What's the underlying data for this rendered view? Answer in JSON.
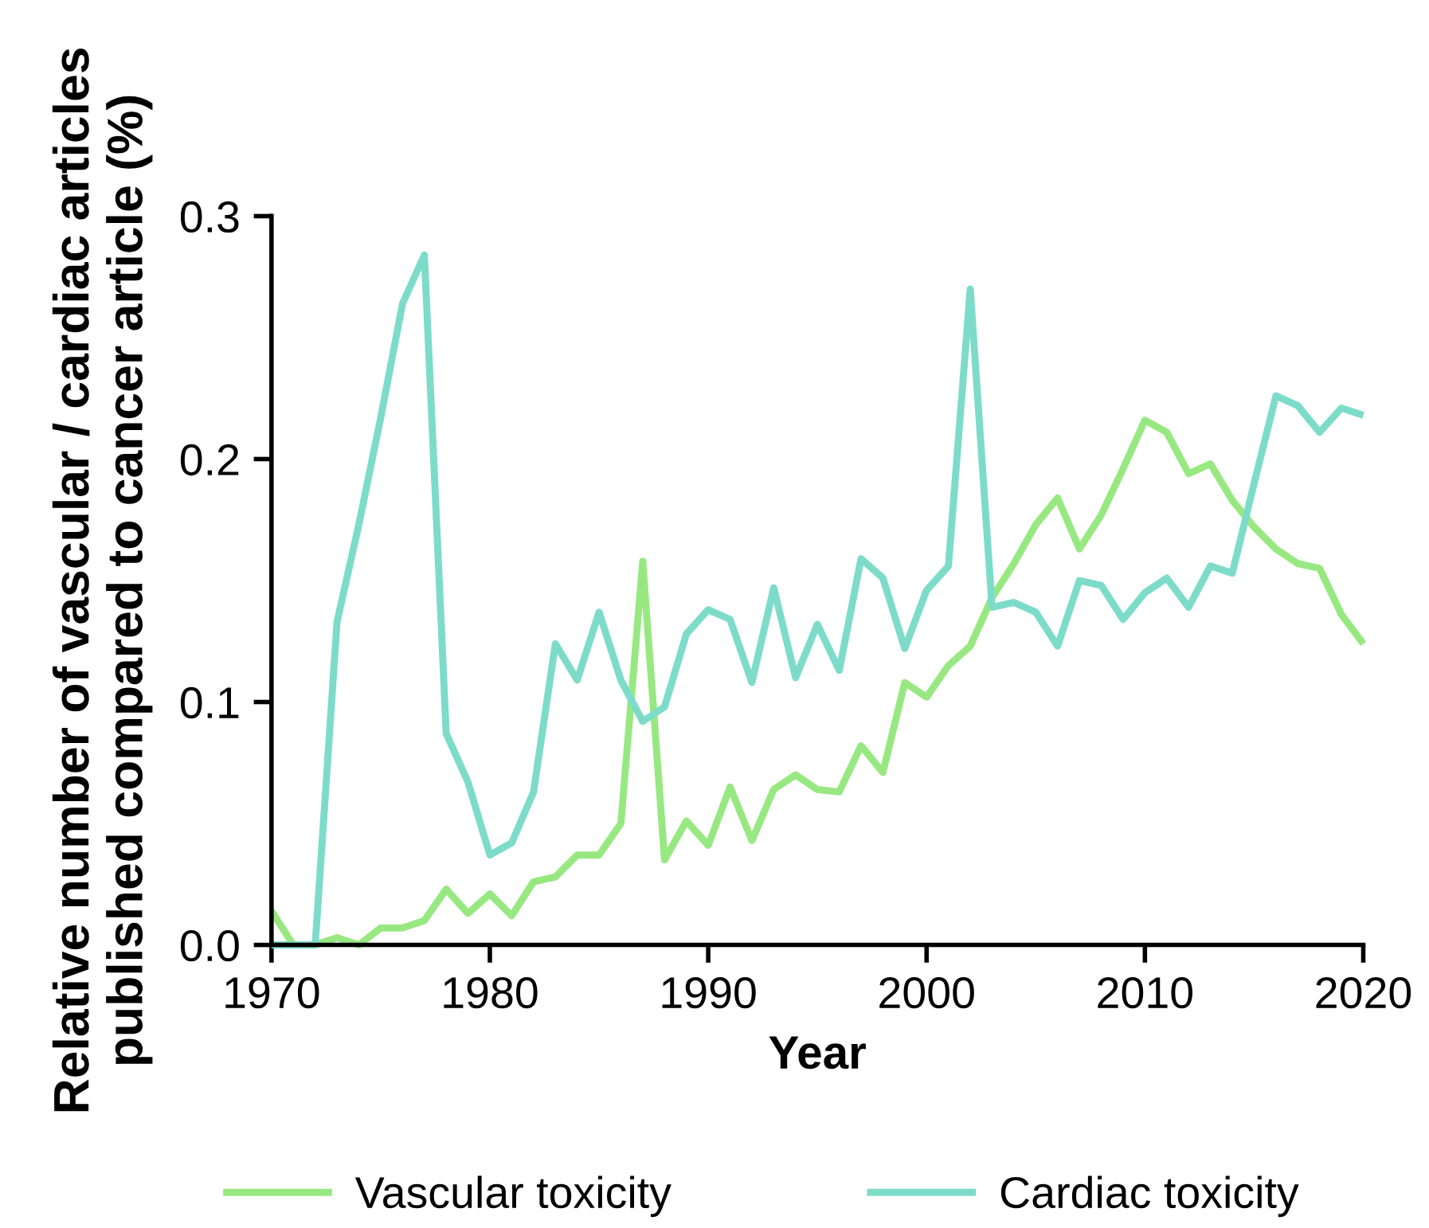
{
  "chart_data": {
    "type": "line",
    "xlabel": "Year",
    "ylabel": "Relative number of vascular / cardiac articles\npublished compared to cancer article (%)",
    "x": [
      1970,
      1971,
      1972,
      1973,
      1974,
      1975,
      1976,
      1977,
      1978,
      1979,
      1980,
      1981,
      1982,
      1983,
      1984,
      1985,
      1986,
      1987,
      1988,
      1989,
      1990,
      1991,
      1992,
      1993,
      1994,
      1995,
      1996,
      1997,
      1998,
      1999,
      2000,
      2001,
      2002,
      2003,
      2004,
      2005,
      2006,
      2007,
      2008,
      2009,
      2010,
      2011,
      2012,
      2013,
      2014,
      2015,
      2016,
      2017,
      2018,
      2019,
      2020
    ],
    "series": [
      {
        "name": "Vascular toxicity",
        "color": "#98e882",
        "values": [
          0.014,
          0,
          0,
          0.003,
          0,
          0.007,
          0.007,
          0.01,
          0.023,
          0.013,
          0.021,
          0.012,
          0.026,
          0.028,
          0.037,
          0.037,
          0.05,
          0.158,
          0.035,
          0.051,
          0.041,
          0.065,
          0.043,
          0.064,
          0.07,
          0.064,
          0.063,
          0.082,
          0.071,
          0.108,
          0.102,
          0.115,
          0.123,
          0.143,
          0.157,
          0.173,
          0.184,
          0.163,
          0.177,
          0.196,
          0.216,
          0.211,
          0.194,
          0.198,
          0.183,
          0.172,
          0.163,
          0.157,
          0.155,
          0.136,
          0.124
        ]
      },
      {
        "name": "Cardiac toxicity",
        "color": "#7ddcc9",
        "values": [
          0,
          0,
          0,
          0.133,
          0.173,
          0.217,
          0.264,
          0.284,
          0.087,
          0.067,
          0.037,
          0.042,
          0.063,
          0.124,
          0.109,
          0.137,
          0.109,
          0.092,
          0.098,
          0.128,
          0.138,
          0.134,
          0.108,
          0.147,
          0.11,
          0.132,
          0.113,
          0.159,
          0.151,
          0.122,
          0.146,
          0.156,
          0.27,
          0.139,
          0.141,
          0.137,
          0.123,
          0.15,
          0.148,
          0.134,
          0.145,
          0.151,
          0.139,
          0.156,
          0.153,
          0.19,
          0.226,
          0.222,
          0.211,
          0.221,
          0.218
        ]
      }
    ],
    "xlim": [
      1970,
      2020
    ],
    "xticks": [
      1970,
      1980,
      1990,
      2000,
      2010,
      2020
    ],
    "ylim": [
      0,
      0.3
    ],
    "yticks": [
      {
        "value": 0,
        "label": "0.0"
      },
      0.1,
      0.2,
      0.3
    ],
    "grid": false,
    "legend": "bottom",
    "marker": "none",
    "line_style": "solid"
  }
}
